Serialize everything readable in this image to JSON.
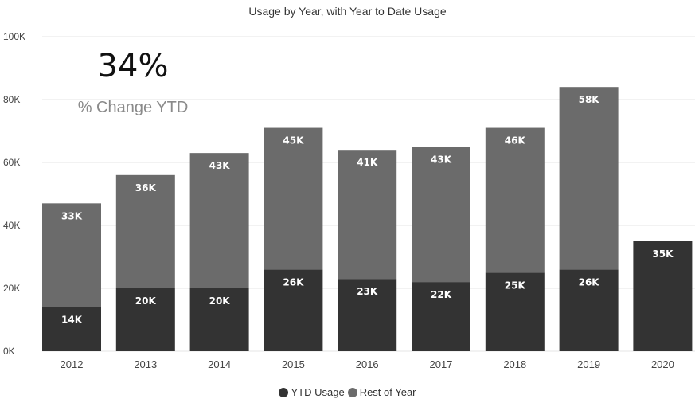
{
  "kpi": {
    "value": "34%",
    "label": "% Change YTD"
  },
  "colors": {
    "ytd": "#333333",
    "rest": "#6b6b6b",
    "grid": "#e4e4e4",
    "axis_text": "#444444",
    "label_text": "#ffffff"
  },
  "chart_data": {
    "type": "bar",
    "stacked": true,
    "title": "Usage by Year, with Year to Date Usage",
    "xlabel": "",
    "ylabel": "",
    "categories": [
      "2012",
      "2013",
      "2014",
      "2015",
      "2016",
      "2017",
      "2018",
      "2019",
      "2020"
    ],
    "series": [
      {
        "name": "YTD Usage",
        "values": [
          14,
          20,
          20,
          26,
          23,
          22,
          25,
          26,
          35
        ],
        "labels": [
          "14K",
          "20K",
          "20K",
          "26K",
          "23K",
          "22K",
          "25K",
          "26K",
          "35K"
        ]
      },
      {
        "name": "Rest of Year",
        "values": [
          33,
          36,
          43,
          45,
          41,
          43,
          46,
          58,
          null
        ],
        "labels": [
          "33K",
          "36K",
          "43K",
          "45K",
          "41K",
          "43K",
          "46K",
          "58K",
          null
        ]
      }
    ],
    "value_unit": "K",
    "ylim": [
      0,
      100
    ],
    "y_ticks": [
      0,
      20,
      40,
      60,
      80,
      100
    ],
    "y_tick_labels": [
      "0K",
      "20K",
      "40K",
      "60K",
      "80K",
      "100K"
    ],
    "grid": true,
    "legend_position": "bottom-center"
  }
}
